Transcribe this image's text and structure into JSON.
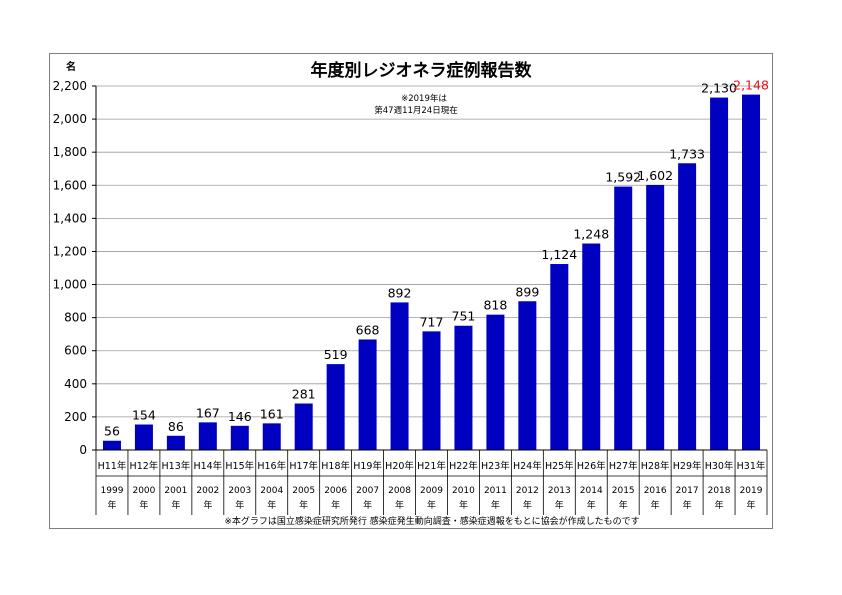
{
  "chart_data": {
    "type": "bar",
    "title": "年度別レジオネラ症例報告数",
    "unit_label": "名",
    "note_lines": [
      "※2019年は",
      "第47週11月24日現在"
    ],
    "source_note": "※本グラフは国立感染症研究所発行 感染症発生動向調査・感染症週報をもとに協会が作成したものです",
    "categories_era": [
      "H11年",
      "H12年",
      "H13年",
      "H14年",
      "H15年",
      "H16年",
      "H17年",
      "H18年",
      "H19年",
      "H20年",
      "H21年",
      "H22年",
      "H23年",
      "H24年",
      "H25年",
      "H26年",
      "H27年",
      "H28年",
      "H29年",
      "H30年",
      "H31年"
    ],
    "categories_year": [
      "1999",
      "2000",
      "2001",
      "2002",
      "2003",
      "2004",
      "2005",
      "2006",
      "2007",
      "2008",
      "2009",
      "2010",
      "2011",
      "2012",
      "2013",
      "2014",
      "2015",
      "2016",
      "2017",
      "2018",
      "2019"
    ],
    "year_suffix": "年",
    "values": [
      56,
      154,
      86,
      167,
      146,
      161,
      281,
      519,
      668,
      892,
      717,
      751,
      818,
      899,
      1124,
      1248,
      1592,
      1602,
      1733,
      2130,
      2148
    ],
    "value_labels": [
      "56",
      "154",
      "86",
      "167",
      "146",
      "161",
      "281",
      "519",
      "668",
      "892",
      "717",
      "751",
      "818",
      "899",
      "1,124",
      "1,248",
      "1,592",
      "1,602",
      "1,733",
      "2,130",
      "2,148"
    ],
    "highlight_index": 20,
    "ylim": [
      0,
      2200
    ],
    "y_ticks": [
      0,
      200,
      400,
      600,
      800,
      1000,
      1200,
      1400,
      1600,
      1800,
      2000,
      2200
    ],
    "y_tick_labels": [
      "0",
      "200",
      "400",
      "600",
      "800",
      "1,000",
      "1,200",
      "1,400",
      "1,600",
      "1,800",
      "2,000",
      "2,200"
    ],
    "grid": true,
    "colors": {
      "bar": "#0000c0",
      "highlight_label": "#e8141c",
      "grid": "#9a9a9a",
      "axis": "#000000"
    }
  }
}
